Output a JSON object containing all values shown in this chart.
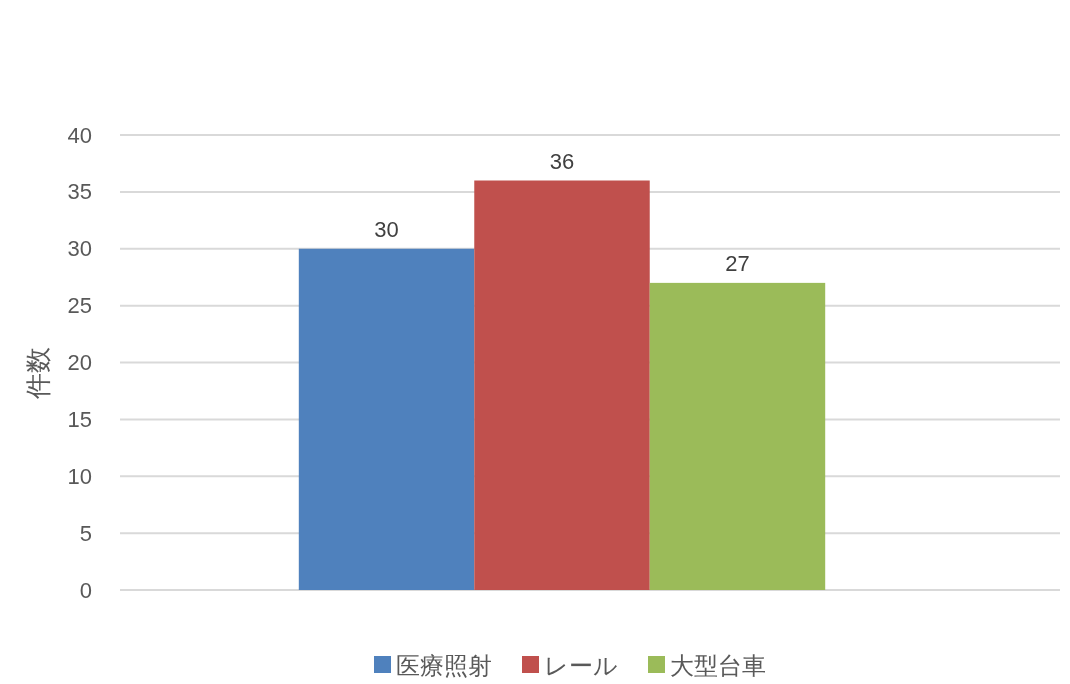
{
  "chart_data": {
    "type": "bar",
    "categories": [
      null
    ],
    "ylabel": "件数",
    "series": [
      {
        "name": "医療照射",
        "color": "#4f81bd",
        "values": [
          30
        ]
      },
      {
        "name": "レール",
        "color": "#c0504d",
        "values": [
          36
        ]
      },
      {
        "name": "大型台車",
        "color": "#9bbb59",
        "values": [
          27
        ]
      }
    ],
    "ylim": [
      0,
      40
    ],
    "yticks": [
      0,
      5,
      10,
      15,
      20,
      25,
      30,
      35,
      40
    ],
    "grid": "y",
    "legend": "bottom",
    "data_labels": true
  }
}
